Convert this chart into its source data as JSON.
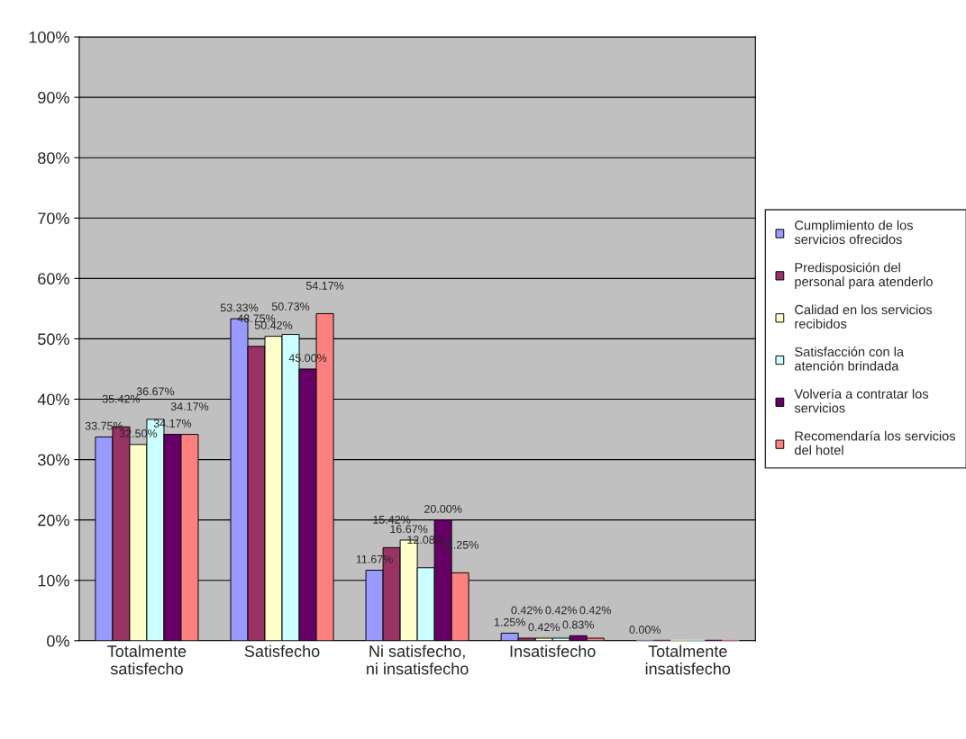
{
  "chart_data": {
    "type": "bar",
    "categories": [
      "Totalmente satisfecho",
      "Satisfecho",
      "Ni satisfecho, ni insatisfecho",
      "Insatisfecho",
      "Totalmente insatisfecho"
    ],
    "series": [
      {
        "name": "Cumplimiento de los servicios ofrecidos",
        "color": "#9999ff",
        "values": [
          33.75,
          53.33,
          11.67,
          1.25,
          0
        ],
        "value_labels": [
          "33.75%",
          "53.33%",
          "11.67%",
          "1.25%",
          "0.00%"
        ]
      },
      {
        "name": "Predisposición del personal para atenderlo",
        "color": "#993366",
        "values": [
          35.42,
          48.75,
          15.42,
          0.42,
          0
        ],
        "value_labels": [
          "35.42%",
          "48.75%",
          "15.42%",
          "0.42%",
          null
        ]
      },
      {
        "name": "Calidad en los servicios recibidos",
        "color": "#ffffcc",
        "values": [
          32.5,
          50.42,
          16.67,
          0.42,
          0
        ],
        "value_labels": [
          "32.50%",
          "50.42%",
          "16.67%",
          "0.42%",
          null
        ]
      },
      {
        "name": "Satisfacción con la atención brindada",
        "color": "#ccffff",
        "values": [
          36.67,
          50.73,
          12.08,
          0.42,
          0
        ],
        "value_labels": [
          "36.67%",
          "50.73%",
          "12.08%",
          "0.42%",
          null
        ]
      },
      {
        "name": "Volvería a contratar los servicios",
        "color": "#660066",
        "values": [
          34.17,
          45.0,
          20.0,
          0.83,
          0
        ],
        "value_labels": [
          "34.17%",
          "45.00%",
          "20.00%",
          "0.83%",
          null
        ]
      },
      {
        "name": "Recomendaría los servicios del hotel",
        "color": "#ff8080",
        "values": [
          34.17,
          54.17,
          11.25,
          0.42,
          0
        ],
        "value_labels": [
          "34.17%",
          "54.17%",
          "11.25%",
          "0.42%",
          null
        ]
      }
    ],
    "ylim": [
      0,
      100
    ],
    "yticks": [
      {
        "value": 0,
        "label": "0%"
      },
      {
        "value": 10,
        "label": "10%"
      },
      {
        "value": 20,
        "label": "20%"
      },
      {
        "value": 30,
        "label": "30%"
      },
      {
        "value": 40,
        "label": "40%"
      },
      {
        "value": 50,
        "label": "50%"
      },
      {
        "value": 60,
        "label": "60%"
      },
      {
        "value": 70,
        "label": "70%"
      },
      {
        "value": 80,
        "label": "80%"
      },
      {
        "value": 90,
        "label": "90%"
      },
      {
        "value": 100,
        "label": "100%"
      }
    ],
    "grid": "y",
    "legend": "right"
  }
}
